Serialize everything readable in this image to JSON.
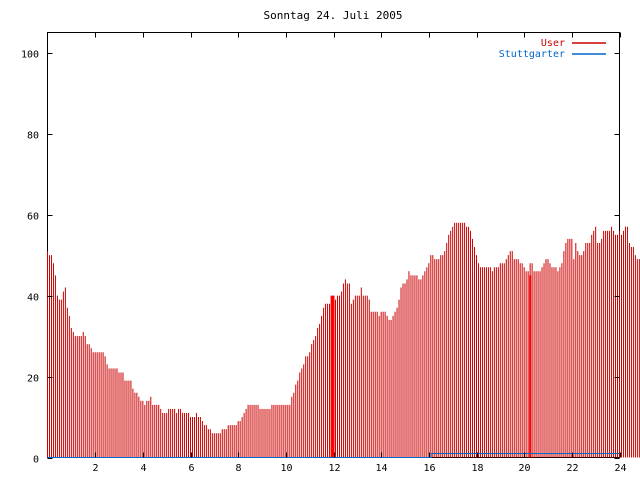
{
  "chart_data": {
    "type": "bar",
    "title": "Sonntag 24. Juli 2005",
    "xlabel": "",
    "ylabel": "",
    "xlim": [
      0,
      24
    ],
    "ylim": [
      0,
      105
    ],
    "x_ticks": [
      2,
      4,
      6,
      8,
      10,
      12,
      14,
      16,
      18,
      20,
      22,
      24
    ],
    "x_tick_labels": [
      "2",
      "4",
      "6",
      "8",
      "10",
      "12",
      "14",
      "16",
      "18",
      "20",
      "22",
      "24"
    ],
    "y_ticks": [
      0,
      20,
      40,
      60,
      80,
      100
    ],
    "y_tick_labels": [
      "0",
      "20",
      "40",
      "60",
      "80",
      "100"
    ],
    "grid": false,
    "legend_position": "top-right",
    "series": [
      {
        "name": "User",
        "color": "#cc0000",
        "style": "impulses",
        "step_minutes": 5,
        "values": [
          51,
          50,
          50,
          48,
          45,
          40,
          39,
          39,
          41,
          42,
          37,
          35,
          32,
          31,
          30,
          30,
          30,
          30,
          31,
          30,
          28,
          28,
          27,
          26,
          26,
          26,
          26,
          26,
          26,
          25,
          23,
          22,
          22,
          22,
          22,
          22,
          21,
          21,
          21,
          19,
          19,
          19,
          19,
          17,
          16,
          16,
          15,
          14,
          14,
          13,
          14,
          14,
          15,
          13,
          13,
          13,
          13,
          12,
          11,
          11,
          11,
          12,
          12,
          12,
          12,
          11,
          12,
          12,
          11,
          11,
          11,
          11,
          10,
          10,
          10,
          11,
          10,
          10,
          9,
          8,
          8,
          7,
          7,
          6,
          6,
          6,
          6,
          6,
          7,
          7,
          7,
          8,
          8,
          8,
          8,
          8,
          9,
          9,
          10,
          11,
          12,
          13,
          13,
          13,
          13,
          13,
          13,
          12,
          12,
          12,
          12,
          12,
          12,
          13,
          13,
          13,
          13,
          13,
          13,
          13,
          13,
          13,
          13,
          15,
          16,
          18,
          19,
          21,
          22,
          23,
          25,
          25,
          26,
          28,
          29,
          30,
          32,
          33,
          35,
          37,
          38,
          38,
          38,
          38,
          39,
          39,
          40,
          40,
          41,
          43,
          44,
          43,
          43,
          38,
          39,
          40,
          40,
          40,
          42,
          40,
          40,
          40,
          39,
          36,
          36,
          36,
          36,
          35,
          36,
          36,
          36,
          35,
          34,
          34,
          35,
          36,
          37,
          39,
          42,
          43,
          43,
          44,
          46,
          45,
          45,
          45,
          45,
          44,
          44,
          45,
          46,
          47,
          48,
          50,
          50,
          49,
          49,
          49,
          50,
          50,
          51,
          53,
          55,
          56,
          57,
          58,
          58,
          58,
          58,
          58,
          58,
          57,
          57,
          56,
          54,
          52,
          50,
          48,
          47,
          47,
          47,
          47,
          47,
          47,
          46,
          47,
          47,
          47,
          48,
          48,
          48,
          49,
          50,
          51,
          51,
          49,
          49,
          49,
          48,
          48,
          47,
          46,
          46,
          48,
          48,
          46,
          46,
          46,
          46,
          47,
          48,
          49,
          49,
          48,
          47,
          47,
          47,
          46,
          47,
          48,
          51,
          53,
          54,
          54,
          54,
          49,
          53,
          51,
          50,
          50,
          51,
          53,
          53,
          53,
          55,
          56,
          57,
          53,
          53,
          54,
          56,
          56,
          56,
          56,
          57,
          56,
          55,
          55,
          56,
          55,
          56,
          57,
          57,
          53,
          52,
          52,
          50,
          49,
          49
        ]
      },
      {
        "name": "Stuttgarter",
        "color": "#0066cc",
        "style": "line",
        "values": [
          [
            0,
            0
          ],
          [
            16.1,
            0
          ],
          [
            16.1,
            1
          ],
          [
            24,
            1
          ]
        ]
      }
    ],
    "highlights": [
      {
        "x": 11.92,
        "y": 40,
        "color": "#ff0000"
      },
      {
        "x": 12.0,
        "y": 40,
        "color": "#ff0000"
      },
      {
        "x": 20.25,
        "y": 45,
        "color": "#ff0000"
      }
    ]
  }
}
